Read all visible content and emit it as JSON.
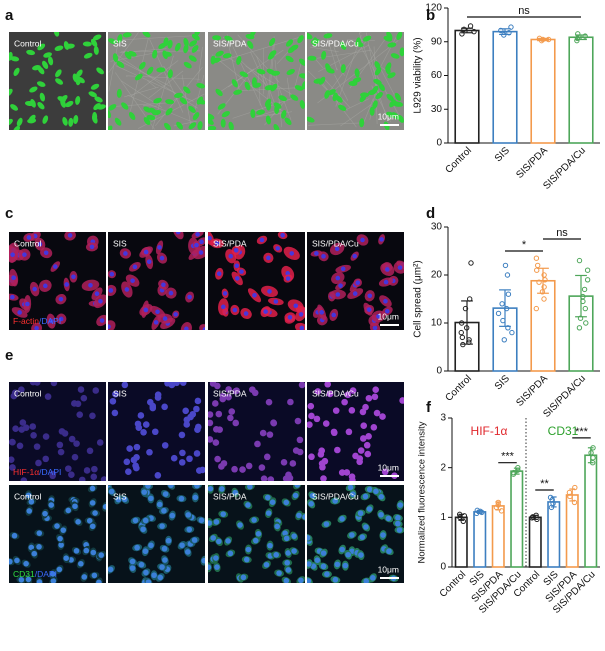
{
  "panels": {
    "letters": [
      "a",
      "b",
      "c",
      "d",
      "e",
      "f"
    ],
    "image_rows": [
      {
        "labels": [
          "Control",
          "SIS",
          "SIS/PDA",
          "SIS/PDA/Cu"
        ],
        "scale_bar": "10μm"
      },
      {
        "labels": [
          "Control",
          "SIS",
          "SIS/PDA",
          "SIS/PDA/Cu"
        ],
        "stain": [
          "F-actin",
          "/DAPI"
        ],
        "scale_bar": "10μm"
      },
      {
        "labels": [
          "Control",
          "SIS",
          "SIS/PDA",
          "SIS/PDA/Cu"
        ],
        "stain": [
          "HIF-1α",
          "/DAPI"
        ],
        "scale_bar": "10μm"
      },
      {
        "labels": [
          "Control",
          "SIS",
          "SIS/PDA",
          "SIS/PDA/Cu"
        ],
        "stain": [
          "CD31",
          "/DAPI"
        ],
        "scale_bar": "10μm"
      }
    ]
  },
  "chart_data": [
    {
      "type": "bar",
      "ylabel": "L929 viability (%)",
      "categories": [
        "Control",
        "SIS",
        "SIS/PDA",
        "SIS/PDA/Cu"
      ],
      "colors": [
        "#222222",
        "#3d7fc0",
        "#f39a4c",
        "#4ea65a"
      ],
      "values": [
        100,
        99,
        92,
        94
      ],
      "errors": [
        2,
        2.5,
        1,
        2
      ],
      "points": [
        [
          97,
          99,
          101,
          104
        ],
        [
          96,
          98,
          100,
          103
        ],
        [
          91,
          92,
          92,
          93
        ],
        [
          91,
          93,
          95,
          97
        ]
      ],
      "ylim": [
        0,
        120
      ],
      "yticks": [
        0,
        30,
        60,
        90,
        120
      ],
      "annotations": [
        "ns"
      ]
    },
    {
      "type": "bar",
      "ylabel": "Cell spread (μm²)",
      "categories": [
        "Control",
        "SIS",
        "SIS/PDA",
        "SIS/PDA/Cu"
      ],
      "colors": [
        "#222222",
        "#3d7fc0",
        "#f39a4c",
        "#4ea65a"
      ],
      "values": [
        10.1,
        13.1,
        18.8,
        15.6
      ],
      "errors": [
        4.5,
        3.8,
        2.6,
        4.3
      ],
      "points": [
        [
          5.5,
          6,
          6.5,
          7,
          8,
          9,
          10,
          13,
          15,
          22.5
        ],
        [
          6.5,
          8,
          9,
          10.5,
          12,
          13,
          14,
          16,
          20,
          22
        ],
        [
          13,
          15,
          16.5,
          17.5,
          18.5,
          19,
          20,
          21,
          22,
          23.5
        ],
        [
          9,
          10,
          11,
          13,
          14.5,
          15.5,
          17,
          19,
          21,
          23
        ]
      ],
      "ylim": [
        0,
        30
      ],
      "yticks": [
        0,
        10,
        20,
        30
      ],
      "annotations": [
        "*",
        "ns"
      ]
    },
    {
      "type": "bar",
      "ylabel": "Normalized fluorescence intensity",
      "categories": [
        "Control",
        "SIS",
        "SIS/PDA",
        "SIS/PDA/Cu"
      ],
      "colors": [
        "#222222",
        "#3d7fc0",
        "#f39a4c",
        "#4ea65a"
      ],
      "series": [
        {
          "name": "HIF-1α",
          "color": "#e0262b",
          "values": [
            1,
            1.11,
            1.23,
            1.93
          ],
          "errors": [
            0.06,
            0.03,
            0.08,
            0.06
          ],
          "points": [
            [
              0.92,
              1,
              1.03,
              1.06
            ],
            [
              1.08,
              1.1,
              1.12,
              1.14
            ],
            [
              1.13,
              1.2,
              1.25,
              1.3
            ],
            [
              1.87,
              1.9,
              1.95,
              2
            ]
          ]
        },
        {
          "name": "CD31",
          "color": "#2ca02c",
          "values": [
            1,
            1.31,
            1.45,
            2.25
          ],
          "errors": [
            0.04,
            0.1,
            0.12,
            0.15
          ],
          "points": [
            [
              0.96,
              0.99,
              1.01,
              1.04
            ],
            [
              1.2,
              1.28,
              1.35,
              1.4
            ],
            [
              1.3,
              1.42,
              1.5,
              1.6
            ],
            [
              2.1,
              2.2,
              2.3,
              2.4
            ]
          ]
        }
      ],
      "ylim": [
        0,
        3
      ],
      "yticks": [
        0,
        1,
        2,
        3
      ],
      "annotations": [
        "***",
        "**",
        "***"
      ]
    }
  ]
}
